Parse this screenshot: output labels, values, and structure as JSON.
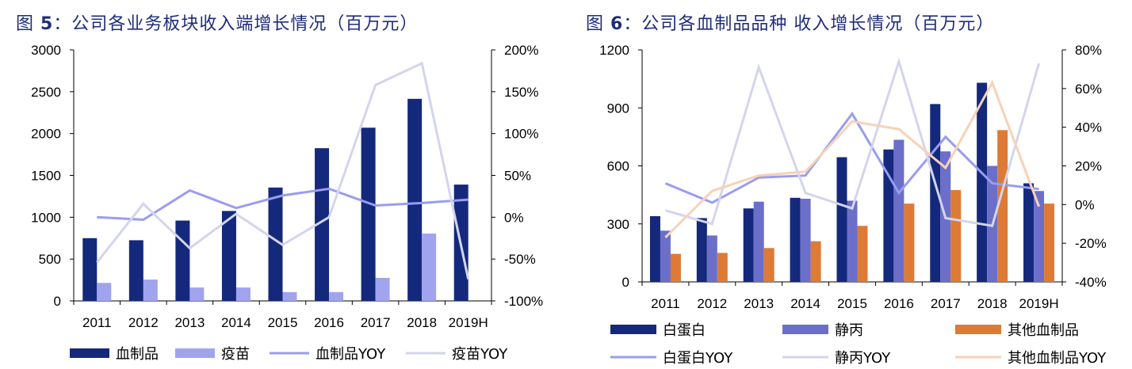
{
  "figures": {
    "left": {
      "fig_label": "图",
      "fig_num": "5",
      "title_text": "：公司各业务板块收入端增长情况（百万元）"
    },
    "right": {
      "fig_label": "图",
      "fig_num": "6",
      "title_text": "：公司各血制品品种 收入增长情况（百万元）"
    }
  },
  "colors": {
    "navy": "#14297c",
    "light_purple": "#a0a4ef",
    "purple_line": "#9a9cf0",
    "pale_line": "#d4d5ec",
    "slate": "#6b6fc9",
    "orange": "#dd7b36",
    "peach_line": "#f6d2b8",
    "title": "#1f2d7a"
  },
  "chart_data": [
    {
      "type": "bar",
      "categories": [
        "2011",
        "2012",
        "2013",
        "2014",
        "2015",
        "2016",
        "2017",
        "2018",
        "2019H"
      ],
      "bar_series": [
        {
          "name": "血制品",
          "values": [
            750,
            725,
            960,
            1075,
            1355,
            1825,
            2070,
            2415,
            1390
          ],
          "color": "#14297c"
        },
        {
          "name": "疫苗",
          "values": [
            215,
            255,
            160,
            160,
            105,
            105,
            275,
            805,
            0
          ],
          "color": "#a0a4ef"
        }
      ],
      "line_series": [
        {
          "name": "血制品YOY",
          "values": [
            0,
            -3,
            32,
            11,
            26,
            34,
            14,
            17,
            21
          ],
          "color": "#9a9cf0"
        },
        {
          "name": "疫苗YOY",
          "values": [
            -54,
            16,
            -37,
            4,
            -33,
            0,
            158,
            184,
            -74
          ],
          "color": "#d4d5ec"
        }
      ],
      "y_left": {
        "min": 0,
        "max": 3000,
        "ticks": [
          "3000",
          "2500",
          "2000",
          "1500",
          "1000",
          "500",
          "0"
        ]
      },
      "y_right": {
        "min": -100,
        "max": 200,
        "ticks": [
          "200%",
          "150%",
          "100%",
          "50%",
          "0%",
          "-50%",
          "-100%"
        ]
      },
      "legend_placement": "bottom",
      "grid": false
    },
    {
      "type": "bar",
      "categories": [
        "2011",
        "2012",
        "2013",
        "2014",
        "2015",
        "2016",
        "2017",
        "2018",
        "2019H"
      ],
      "bar_series": [
        {
          "name": "白蛋白",
          "values": [
            340,
            330,
            380,
            435,
            645,
            685,
            920,
            1030,
            510
          ],
          "color": "#14297c"
        },
        {
          "name": "静丙",
          "values": [
            265,
            240,
            415,
            430,
            420,
            735,
            675,
            600,
            470
          ],
          "color": "#6b6fc9"
        },
        {
          "name": "其他血制品",
          "values": [
            145,
            150,
            175,
            210,
            290,
            405,
            475,
            785,
            405
          ],
          "color": "#dd7b36"
        }
      ],
      "line_series": [
        {
          "name": "白蛋白YOY",
          "values": [
            11,
            1,
            14,
            15,
            47,
            6,
            35,
            11,
            8
          ],
          "color": "#9a9cf0"
        },
        {
          "name": "静丙YOY",
          "values": [
            -3,
            -10,
            71,
            6,
            -2,
            74,
            -7,
            -11,
            73
          ],
          "color": "#d4d5ec"
        },
        {
          "name": "其他血制品YOY",
          "values": [
            -17,
            7,
            15,
            17,
            43,
            39,
            19,
            63,
            -1
          ],
          "color": "#f6d2b8"
        }
      ],
      "y_left": {
        "min": 0,
        "max": 1200,
        "ticks": [
          "1200",
          "900",
          "600",
          "300",
          "0"
        ]
      },
      "y_right": {
        "min": -40,
        "max": 80,
        "ticks": [
          "80%",
          "60%",
          "40%",
          "20%",
          "0%",
          "-20%",
          "-40%"
        ]
      },
      "legend_placement": "bottom",
      "grid": false
    }
  ]
}
